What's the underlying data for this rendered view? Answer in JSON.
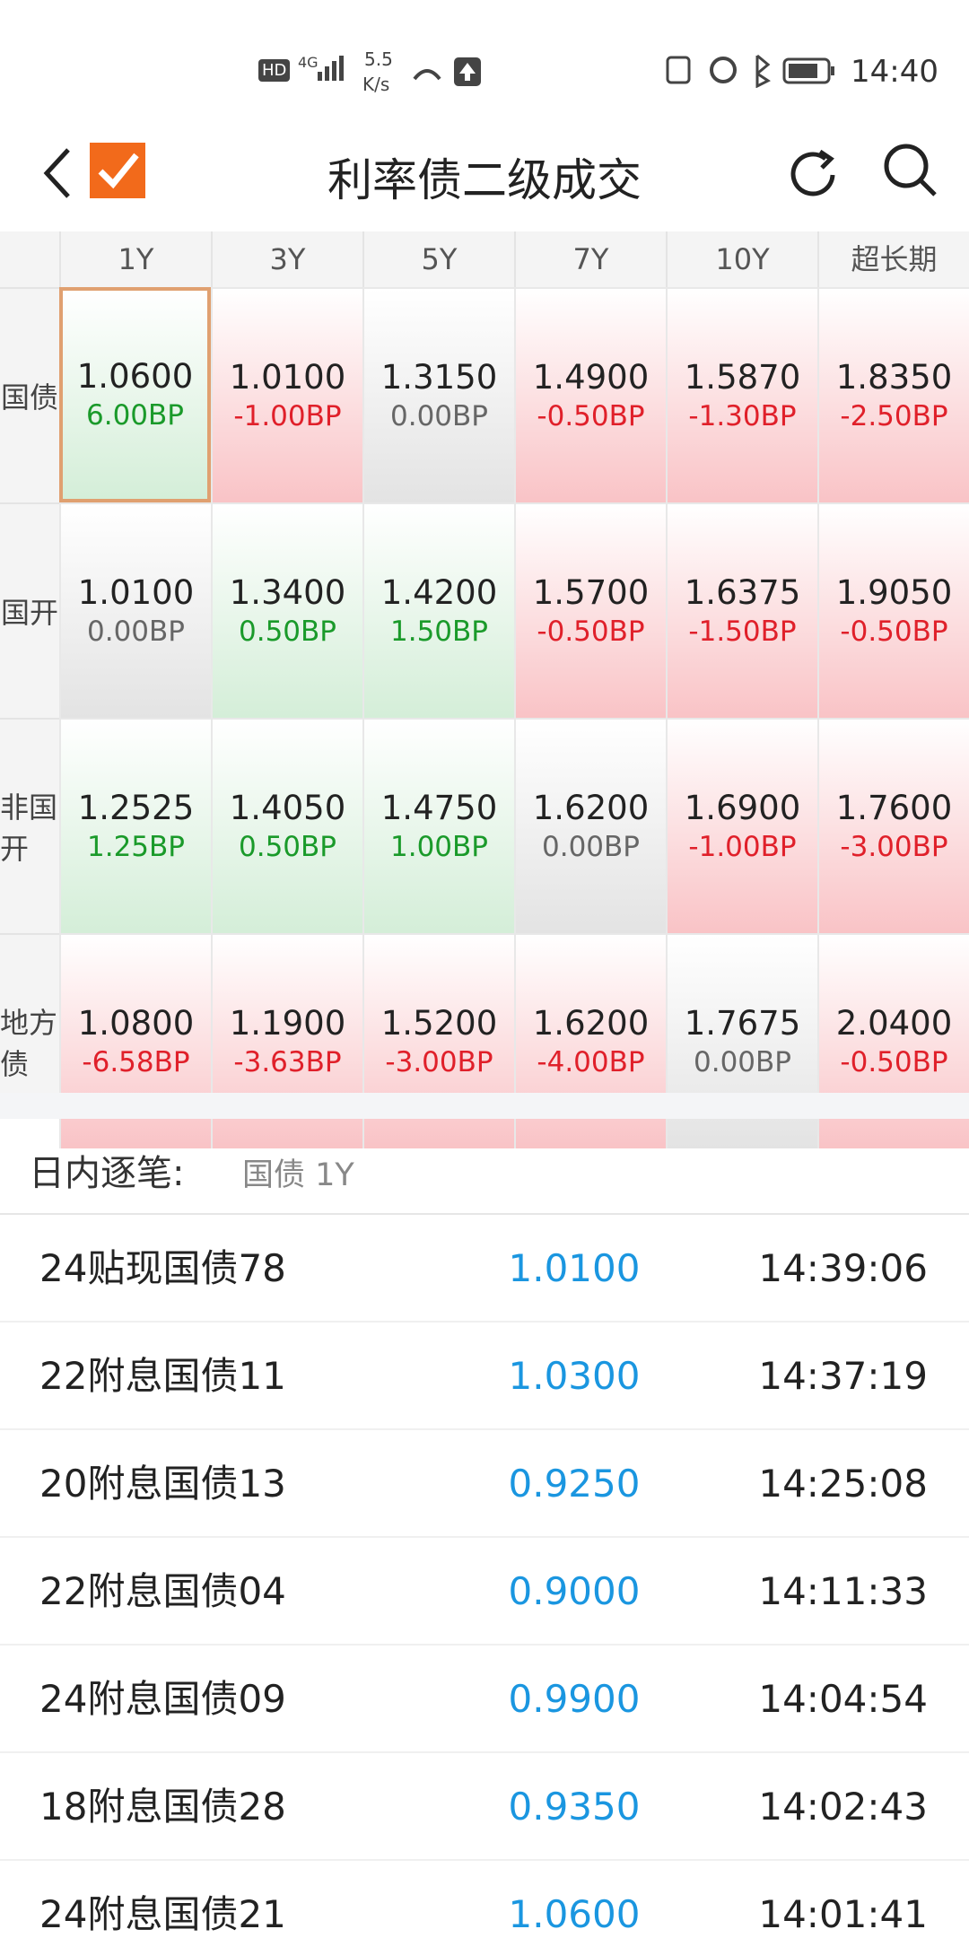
{
  "status_bar": {
    "hd": "HD",
    "network": "4G",
    "speed": "5.5",
    "speed_unit": "K/s",
    "time": "14:40"
  },
  "header": {
    "title": "利率债二级成交"
  },
  "grid": {
    "columns": [
      "1Y",
      "3Y",
      "5Y",
      "7Y",
      "10Y",
      "超长期"
    ],
    "selected": [
      0,
      0
    ],
    "rows": [
      {
        "label": "国债",
        "cells": [
          {
            "yield": "1.0600",
            "bp": {
              "value": 6,
              "label": "6.00BP"
            }
          },
          {
            "yield": "1.0100",
            "bp": {
              "value": -1,
              "label": "-1.00BP"
            }
          },
          {
            "yield": "1.3150",
            "bp": {
              "value": 0,
              "label": "0.00BP"
            }
          },
          {
            "yield": "1.4900",
            "bp": {
              "value": -0.5,
              "label": "-0.50BP"
            }
          },
          {
            "yield": "1.5870",
            "bp": {
              "value": -1.3,
              "label": "-1.30BP"
            }
          },
          {
            "yield": "1.8350",
            "bp": {
              "value": -2.5,
              "label": "-2.50BP"
            }
          }
        ]
      },
      {
        "label": "国开",
        "cells": [
          {
            "yield": "1.0100",
            "bp": {
              "value": 0,
              "label": "0.00BP"
            }
          },
          {
            "yield": "1.3400",
            "bp": {
              "value": 0.5,
              "label": "0.50BP"
            }
          },
          {
            "yield": "1.4200",
            "bp": {
              "value": 1.5,
              "label": "1.50BP"
            }
          },
          {
            "yield": "1.5700",
            "bp": {
              "value": -0.5,
              "label": "-0.50BP"
            }
          },
          {
            "yield": "1.6375",
            "bp": {
              "value": -1.5,
              "label": "-1.50BP"
            }
          },
          {
            "yield": "1.9050",
            "bp": {
              "value": -0.5,
              "label": "-0.50BP"
            }
          }
        ]
      },
      {
        "label": "非国开",
        "cells": [
          {
            "yield": "1.2525",
            "bp": {
              "value": 1.25,
              "label": "1.25BP"
            }
          },
          {
            "yield": "1.4050",
            "bp": {
              "value": 0.5,
              "label": "0.50BP"
            }
          },
          {
            "yield": "1.4750",
            "bp": {
              "value": 1,
              "label": "1.00BP"
            }
          },
          {
            "yield": "1.6200",
            "bp": {
              "value": 0,
              "label": "0.00BP"
            }
          },
          {
            "yield": "1.6900",
            "bp": {
              "value": -1,
              "label": "-1.00BP"
            }
          },
          {
            "yield": "1.7600",
            "bp": {
              "value": -3,
              "label": "-3.00BP"
            }
          }
        ]
      },
      {
        "label": "地方债",
        "cells": [
          {
            "yield": "1.0800",
            "bp": {
              "value": -6.58,
              "label": "-6.58BP"
            }
          },
          {
            "yield": "1.1900",
            "bp": {
              "value": -3.63,
              "label": "-3.63BP"
            }
          },
          {
            "yield": "1.5200",
            "bp": {
              "value": -3,
              "label": "-3.00BP"
            }
          },
          {
            "yield": "1.6200",
            "bp": {
              "value": -4,
              "label": "-4.00BP"
            }
          },
          {
            "yield": "1.7675",
            "bp": {
              "value": 0,
              "label": "0.00BP"
            }
          },
          {
            "yield": "2.0400",
            "bp": {
              "value": -0.5,
              "label": "-0.50BP"
            }
          }
        ]
      }
    ]
  },
  "intraday": {
    "label": "日内逐笔:",
    "selection": "国债 1Y",
    "trades": [
      {
        "name": "24贴现国债78",
        "yield": "1.0100",
        "time": "14:39:06"
      },
      {
        "name": "22附息国债11",
        "yield": "1.0300",
        "time": "14:37:19"
      },
      {
        "name": "20附息国债13",
        "yield": "0.9250",
        "time": "14:25:08"
      },
      {
        "name": "22附息国债04",
        "yield": "0.9000",
        "time": "14:11:33"
      },
      {
        "name": "24附息国债09",
        "yield": "0.9900",
        "time": "14:04:54"
      },
      {
        "name": "18附息国债28",
        "yield": "0.9350",
        "time": "14:02:43"
      },
      {
        "name": "24附息国债21",
        "yield": "1.0600",
        "time": "14:01:41"
      }
    ]
  }
}
